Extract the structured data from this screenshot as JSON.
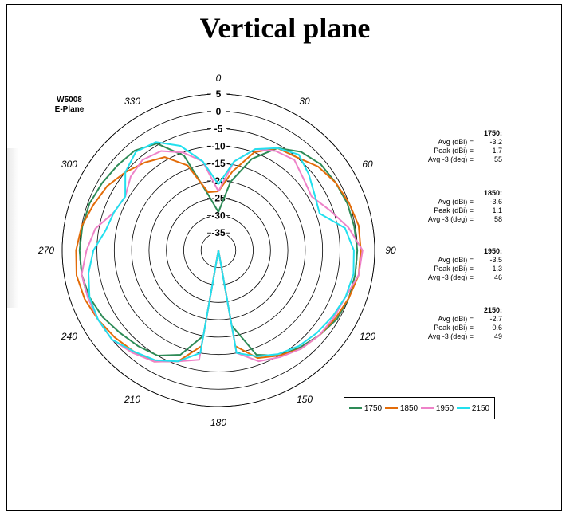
{
  "page": {
    "title": "Vertical plane"
  },
  "chart_data": {
    "type": "polar",
    "chart_label": [
      "W5008",
      "E-Plane"
    ],
    "angle_ticks": [
      "0",
      "30",
      "60",
      "90",
      "120",
      "150",
      "180",
      "210",
      "240",
      "270",
      "300",
      "330"
    ],
    "radial_ticks": [
      "5",
      "0",
      "-5",
      "-10",
      "-15",
      "-20",
      "-25",
      "-30",
      "-35"
    ],
    "rlim": [
      -40,
      5
    ],
    "angle_step": 10,
    "series": [
      {
        "name": "1750",
        "color": "#2e8b57",
        "values": [
          -29,
          -20,
          -12,
          -6,
          -3,
          -1.5,
          -1,
          -0.5,
          -0.3,
          0,
          0,
          0,
          -0.5,
          -2,
          -3.5,
          -5,
          -8,
          -18,
          -40,
          -15,
          -8,
          -5,
          -4,
          -3,
          -1.5,
          -0.5,
          0,
          0,
          -0.2,
          -0.5,
          -1.3,
          -2,
          -2.5,
          -4.5,
          -11,
          -24
        ]
      },
      {
        "name": "1850",
        "color": "#e36c09",
        "values": [
          -23,
          -17,
          -10,
          -6,
          -5,
          -2.5,
          -1,
          0,
          1,
          1,
          1,
          0,
          -1,
          -2,
          -3,
          -5,
          -7,
          -12,
          -40,
          -12,
          -6,
          -3,
          -2,
          -1,
          0,
          1,
          1.5,
          1,
          0,
          -1.7,
          -3,
          -5,
          -7,
          -9,
          -14,
          -23
        ]
      },
      {
        "name": "1950",
        "color": "#ee82c8",
        "values": [
          -23,
          -14,
          -9,
          -7,
          -6,
          -8,
          -9,
          -6,
          -2,
          1.5,
          1,
          -1,
          -1.5,
          -2,
          -3,
          -4.5,
          -6,
          -10,
          -40,
          -8,
          -6,
          -3,
          -1.5,
          0,
          0,
          0,
          0,
          -2,
          -4,
          -8,
          -9,
          -7,
          -6,
          -7,
          -10,
          -14
        ]
      },
      {
        "name": "2150",
        "color": "#22e0ee",
        "values": [
          -21,
          -14,
          -9,
          -6,
          -4,
          -6,
          -8,
          -9,
          -3,
          -1,
          -0.5,
          -1,
          -2,
          -3,
          -4,
          -5.5,
          -7.5,
          -10,
          -40,
          -10,
          -6,
          -3.5,
          -2,
          0,
          0,
          -0.5,
          -2,
          -4,
          -7,
          -8,
          -9,
          -5,
          -3,
          -4,
          -8,
          -14
        ]
      }
    ],
    "stats": [
      {
        "freq": "1750:",
        "avg_label": "Avg (dBi) =",
        "avg": "-3.2",
        "peak_label": "Peak (dBi) =",
        "peak": "1.7",
        "bw_label": "Avg -3 (deg) =",
        "bw": "55"
      },
      {
        "freq": "1850:",
        "avg_label": "Avg (dBi) =",
        "avg": "-3.6",
        "peak_label": "Peak (dBi) =",
        "peak": "1.1",
        "bw_label": "Avg -3 (deg) =",
        "bw": "58"
      },
      {
        "freq": "1950:",
        "avg_label": "Avg (dBi) =",
        "avg": "-3.5",
        "peak_label": "Peak (dBi) =",
        "peak": "1.3",
        "bw_label": "Avg -3 (deg) =",
        "bw": "46"
      },
      {
        "freq": "2150:",
        "avg_label": "Avg (dBi) =",
        "avg": "-2.7",
        "peak_label": "Peak (dBi) =",
        "peak": "0.6",
        "bw_label": "Avg -3 (deg) =",
        "bw": "49"
      }
    ],
    "legend": [
      "1750",
      "1850",
      "1950",
      "2150"
    ],
    "legend_colors": [
      "#2e8b57",
      "#e36c09",
      "#ee82c8",
      "#22e0ee"
    ],
    "legend_placement": "bottom-right",
    "grid": true
  }
}
